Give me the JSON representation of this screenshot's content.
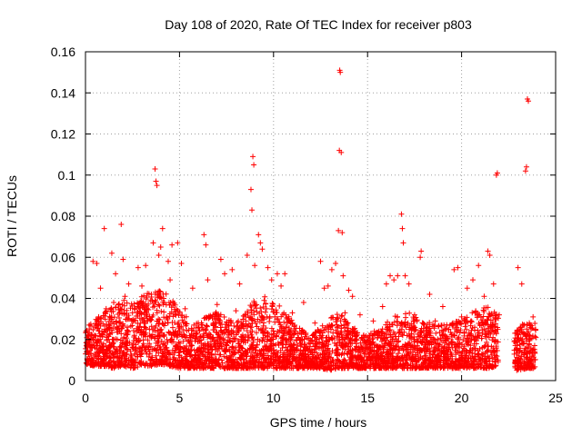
{
  "chart_data": {
    "type": "scatter",
    "title": "Day 108 of 2020, Rate Of TEC Index for receiver p803",
    "xlabel": "GPS time / hours",
    "ylabel": "ROTI / TECUs",
    "xlim": [
      0,
      25
    ],
    "ylim": [
      0,
      0.16
    ],
    "xticks": [
      0,
      5,
      10,
      15,
      20,
      25
    ],
    "xtick_labels": [
      "0",
      "5",
      "10",
      "15",
      "20",
      "25"
    ],
    "yticks": [
      0,
      0.02,
      0.04,
      0.06,
      0.08,
      0.1,
      0.12,
      0.14,
      0.16
    ],
    "ytick_labels": [
      "0",
      "0.02",
      "0.04",
      "0.06",
      "0.08",
      "0.1",
      "0.12",
      "0.14",
      "0.16"
    ],
    "grid": true,
    "marker": "plus",
    "color": "#ff0000",
    "series": [
      {
        "name": "ROTI",
        "points": [
          [
            0.1,
            0.018
          ],
          [
            0.2,
            0.027
          ],
          [
            0.3,
            0.012
          ],
          [
            0.4,
            0.058
          ],
          [
            0.5,
            0.022
          ],
          [
            0.6,
            0.057
          ],
          [
            0.7,
            0.031
          ],
          [
            0.8,
            0.045
          ],
          [
            0.9,
            0.015
          ],
          [
            1.0,
            0.074
          ],
          [
            1.1,
            0.035
          ],
          [
            1.2,
            0.02
          ],
          [
            1.4,
            0.062
          ],
          [
            1.5,
            0.038
          ],
          [
            1.6,
            0.052
          ],
          [
            1.7,
            0.013
          ],
          [
            1.8,
            0.028
          ],
          [
            1.9,
            0.076
          ],
          [
            2.0,
            0.059
          ],
          [
            2.1,
            0.041
          ],
          [
            2.2,
            0.017
          ],
          [
            2.3,
            0.047
          ],
          [
            2.5,
            0.033
          ],
          [
            2.6,
            0.022
          ],
          [
            2.8,
            0.055
          ],
          [
            2.9,
            0.014
          ],
          [
            3.0,
            0.046
          ],
          [
            3.2,
            0.056
          ],
          [
            3.3,
            0.029
          ],
          [
            3.5,
            0.042
          ],
          [
            3.6,
            0.067
          ],
          [
            3.7,
            0.103
          ],
          [
            3.75,
            0.097
          ],
          [
            3.8,
            0.095
          ],
          [
            3.9,
            0.061
          ],
          [
            4.0,
            0.065
          ],
          [
            4.1,
            0.074
          ],
          [
            4.2,
            0.038
          ],
          [
            4.3,
            0.016
          ],
          [
            4.4,
            0.058
          ],
          [
            4.5,
            0.049
          ],
          [
            4.6,
            0.066
          ],
          [
            4.8,
            0.024
          ],
          [
            4.9,
            0.067
          ],
          [
            5.1,
            0.057
          ],
          [
            5.3,
            0.035
          ],
          [
            5.5,
            0.019
          ],
          [
            5.7,
            0.045
          ],
          [
            6.0,
            0.028
          ],
          [
            6.3,
            0.071
          ],
          [
            6.4,
            0.066
          ],
          [
            6.5,
            0.049
          ],
          [
            6.7,
            0.013
          ],
          [
            7.0,
            0.037
          ],
          [
            7.2,
            0.059
          ],
          [
            7.4,
            0.052
          ],
          [
            7.6,
            0.027
          ],
          [
            7.8,
            0.054
          ],
          [
            8.0,
            0.034
          ],
          [
            8.2,
            0.047
          ],
          [
            8.4,
            0.021
          ],
          [
            8.6,
            0.061
          ],
          [
            8.8,
            0.093
          ],
          [
            8.85,
            0.083
          ],
          [
            8.9,
            0.109
          ],
          [
            8.95,
            0.105
          ],
          [
            9.0,
            0.056
          ],
          [
            9.2,
            0.071
          ],
          [
            9.3,
            0.067
          ],
          [
            9.4,
            0.064
          ],
          [
            9.5,
            0.039
          ],
          [
            9.7,
            0.055
          ],
          [
            9.9,
            0.049
          ],
          [
            10.0,
            0.017
          ],
          [
            10.2,
            0.052
          ],
          [
            10.4,
            0.046
          ],
          [
            10.6,
            0.052
          ],
          [
            10.8,
            0.029
          ],
          [
            11.0,
            0.033
          ],
          [
            11.3,
            0.021
          ],
          [
            11.6,
            0.038
          ],
          [
            11.9,
            0.015
          ],
          [
            12.2,
            0.028
          ],
          [
            12.5,
            0.058
          ],
          [
            12.7,
            0.045
          ],
          [
            12.9,
            0.046
          ],
          [
            13.1,
            0.054
          ],
          [
            13.3,
            0.057
          ],
          [
            13.45,
            0.073
          ],
          [
            13.5,
            0.112
          ],
          [
            13.52,
            0.151
          ],
          [
            13.55,
            0.15
          ],
          [
            13.6,
            0.111
          ],
          [
            13.65,
            0.072
          ],
          [
            13.7,
            0.051
          ],
          [
            13.8,
            0.033
          ],
          [
            14.0,
            0.044
          ],
          [
            14.2,
            0.041
          ],
          [
            14.4,
            0.018
          ],
          [
            14.6,
            0.032
          ],
          [
            14.8,
            0.022
          ],
          [
            15.0,
            0.014
          ],
          [
            15.3,
            0.029
          ],
          [
            15.6,
            0.024
          ],
          [
            15.8,
            0.036
          ],
          [
            16.0,
            0.047
          ],
          [
            16.2,
            0.051
          ],
          [
            16.4,
            0.049
          ],
          [
            16.6,
            0.051
          ],
          [
            16.8,
            0.081
          ],
          [
            16.85,
            0.074
          ],
          [
            16.9,
            0.067
          ],
          [
            17.0,
            0.051
          ],
          [
            17.2,
            0.047
          ],
          [
            17.5,
            0.032
          ],
          [
            17.8,
            0.06
          ],
          [
            17.85,
            0.063
          ],
          [
            18.0,
            0.021
          ],
          [
            18.3,
            0.042
          ],
          [
            18.6,
            0.029
          ],
          [
            19.0,
            0.036
          ],
          [
            19.3,
            0.025
          ],
          [
            19.6,
            0.054
          ],
          [
            19.8,
            0.055
          ],
          [
            20.0,
            0.031
          ],
          [
            20.3,
            0.045
          ],
          [
            20.6,
            0.049
          ],
          [
            20.9,
            0.056
          ],
          [
            21.2,
            0.041
          ],
          [
            21.4,
            0.063
          ],
          [
            21.5,
            0.061
          ],
          [
            21.7,
            0.047
          ],
          [
            21.85,
            0.1
          ],
          [
            21.9,
            0.101
          ],
          [
            22.0,
            0.032
          ],
          [
            22.8,
            0.019
          ],
          [
            23.0,
            0.055
          ],
          [
            23.2,
            0.047
          ],
          [
            23.4,
            0.102
          ],
          [
            23.45,
            0.104
          ],
          [
            23.5,
            0.137
          ],
          [
            23.55,
            0.136
          ],
          [
            23.6,
            0.028
          ],
          [
            23.8,
            0.031
          ]
        ]
      }
    ],
    "dense_band": {
      "note": "dense cloud of ROTI samples, lower envelope and upper envelope per hour",
      "hours": [
        0.0,
        0.5,
        1.0,
        1.5,
        2.0,
        2.5,
        3.0,
        3.5,
        4.0,
        4.5,
        5.0,
        5.5,
        6.0,
        6.5,
        7.0,
        7.5,
        8.0,
        8.5,
        9.0,
        9.5,
        10.0,
        10.5,
        11.0,
        11.5,
        12.0,
        12.5,
        13.0,
        13.5,
        14.0,
        14.5,
        15.0,
        15.5,
        16.0,
        16.5,
        17.0,
        17.5,
        18.0,
        18.5,
        19.0,
        19.5,
        20.0,
        20.5,
        21.0,
        21.5,
        21.9,
        22.8,
        23.0,
        23.5,
        23.9
      ],
      "low": [
        0.008,
        0.007,
        0.007,
        0.006,
        0.007,
        0.006,
        0.007,
        0.007,
        0.008,
        0.007,
        0.006,
        0.006,
        0.006,
        0.006,
        0.006,
        0.006,
        0.006,
        0.006,
        0.006,
        0.006,
        0.006,
        0.006,
        0.006,
        0.006,
        0.006,
        0.006,
        0.005,
        0.006,
        0.006,
        0.006,
        0.006,
        0.006,
        0.006,
        0.006,
        0.006,
        0.006,
        0.006,
        0.006,
        0.006,
        0.006,
        0.006,
        0.006,
        0.006,
        0.006,
        0.007,
        0.005,
        0.005,
        0.006,
        0.006
      ],
      "high": [
        0.025,
        0.03,
        0.033,
        0.037,
        0.04,
        0.038,
        0.042,
        0.043,
        0.045,
        0.04,
        0.035,
        0.03,
        0.028,
        0.032,
        0.034,
        0.031,
        0.028,
        0.033,
        0.04,
        0.041,
        0.039,
        0.035,
        0.03,
        0.025,
        0.022,
        0.026,
        0.03,
        0.035,
        0.028,
        0.024,
        0.022,
        0.025,
        0.028,
        0.032,
        0.035,
        0.031,
        0.029,
        0.028,
        0.027,
        0.028,
        0.03,
        0.033,
        0.035,
        0.036,
        0.032,
        0.024,
        0.026,
        0.03,
        0.029
      ]
    }
  }
}
